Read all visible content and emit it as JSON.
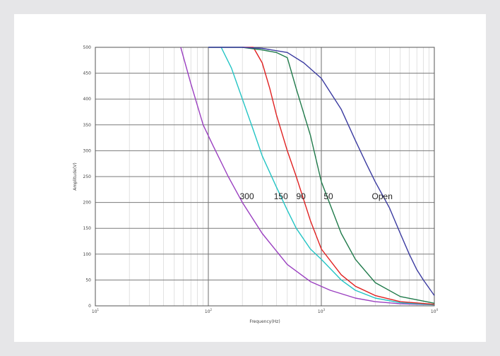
{
  "chart_data": {
    "type": "line",
    "xscale": "log",
    "xlim": [
      10,
      10000
    ],
    "ylim": [
      0,
      500
    ],
    "xlabel": "Frequency(Hz)",
    "ylabel": "Amplitude(V)",
    "x_ticks": [
      {
        "value": 10,
        "base": "10",
        "exp": "1"
      },
      {
        "value": 100,
        "base": "10",
        "exp": "2"
      },
      {
        "value": 1000,
        "base": "10",
        "exp": "3"
      },
      {
        "value": 10000,
        "base": "10",
        "exp": "4"
      }
    ],
    "y_ticks": [
      {
        "value": 0,
        "label": "0"
      },
      {
        "value": 50,
        "label": "50"
      },
      {
        "value": 100,
        "label": "100"
      },
      {
        "value": 150,
        "label": "150"
      },
      {
        "value": 200,
        "label": "200"
      },
      {
        "value": 250,
        "label": "250"
      },
      {
        "value": 300,
        "label": "300"
      },
      {
        "value": 350,
        "label": "350"
      },
      {
        "value": 400,
        "label": "400"
      },
      {
        "value": 450,
        "label": "450"
      },
      {
        "value": 500,
        "label": "500"
      }
    ],
    "grid": true,
    "series": [
      {
        "name": "300",
        "color": "#9a3fc0",
        "x": [
          57,
          70,
          90,
          110,
          150,
          200,
          300,
          500,
          800,
          1200,
          2000,
          3000,
          5000,
          10000
        ],
        "y": [
          500,
          430,
          350,
          310,
          250,
          200,
          140,
          80,
          47,
          30,
          15,
          8,
          4,
          2
        ]
      },
      {
        "name": "150",
        "color": "#22c4c4",
        "x": [
          130,
          160,
          200,
          250,
          300,
          400,
          500,
          600,
          800,
          1000,
          1500,
          2000,
          3000,
          5000,
          10000
        ],
        "y": [
          500,
          460,
          400,
          340,
          290,
          230,
          185,
          150,
          110,
          90,
          50,
          30,
          15,
          6,
          2
        ]
      },
      {
        "name": "90",
        "color": "#e02020",
        "x": [
          200,
          250,
          300,
          350,
          400,
          500,
          600,
          800,
          1000,
          1500,
          2000,
          3000,
          5000,
          10000
        ],
        "y": [
          500,
          500,
          470,
          420,
          370,
          300,
          250,
          165,
          110,
          60,
          38,
          20,
          8,
          3
        ]
      },
      {
        "name": "50",
        "color": "#1f7a4a",
        "x": [
          100,
          200,
          300,
          400,
          500,
          600,
          800,
          1000,
          1500,
          2000,
          3000,
          5000,
          10000
        ],
        "y": [
          500,
          500,
          495,
          490,
          480,
          420,
          330,
          240,
          140,
          90,
          45,
          18,
          5
        ]
      },
      {
        "name": "Open",
        "color": "#3a3aa0",
        "x": [
          100,
          200,
          300,
          500,
          700,
          1000,
          1500,
          2000,
          2500,
          3000,
          4000,
          5000,
          6000,
          7000,
          8000,
          10000
        ],
        "y": [
          500,
          500,
          498,
          490,
          470,
          440,
          380,
          320,
          275,
          240,
          190,
          140,
          100,
          70,
          50,
          20
        ]
      }
    ],
    "labels": [
      {
        "text": "300",
        "x": 190,
        "y": 212
      },
      {
        "text": "150",
        "x": 380,
        "y": 212
      },
      {
        "text": "90",
        "x": 600,
        "y": 212
      },
      {
        "text": "50",
        "x": 1050,
        "y": 212
      },
      {
        "text": "Open",
        "x": 2800,
        "y": 212
      }
    ]
  }
}
